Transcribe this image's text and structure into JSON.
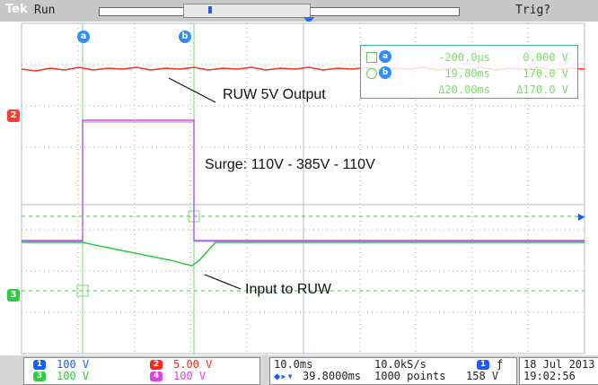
{
  "header": {
    "brand": "Tek",
    "acquisition_state": "Run",
    "trigger_state": "Trig?"
  },
  "cursors": {
    "cursor_a_label": "a",
    "cursor_b_label": "b",
    "readout": {
      "row_a": {
        "label": "a",
        "time": "-200.0µs",
        "voltage": "0.000 V"
      },
      "row_b": {
        "label": "b",
        "time": "19.80ms",
        "voltage": "170.0 V"
      },
      "row_delta": {
        "time": "Δ20.00ms",
        "voltage": "Δ170.0 V"
      }
    }
  },
  "channel_markers": {
    "ch2": "2",
    "ch3": "3"
  },
  "annotations": {
    "ruw_output": "RUW 5V Output",
    "surge": "Surge: 110V - 385V - 110V",
    "input": "Input to RUW"
  },
  "channels": [
    {
      "id": "1",
      "scale": "100 V",
      "color": "#1a5cff"
    },
    {
      "id": "2",
      "scale": "5.00 V",
      "color": "#ff2a1a"
    },
    {
      "id": "3",
      "scale": "100 V",
      "color": "#2ecc40"
    },
    {
      "id": "4",
      "scale": "100 V",
      "color": "#e040e0"
    }
  ],
  "timebase": {
    "time_per_div": "10.0ms",
    "sample_rate": "10.0kS/s",
    "delay": "39.8000ms",
    "record_length": "1000 points",
    "trigger_source": "1",
    "trigger_level": "158 V"
  },
  "date": {
    "date": "18 Jul 2013",
    "time": "19:02:56"
  },
  "colors": {
    "ch1": "#1a5cff",
    "ch2": "#ff2a1a",
    "ch3": "#2ecc40",
    "ch4": "#e040e0",
    "graticule": "#9aa0b8",
    "readout_text": "#7ae06a"
  }
}
